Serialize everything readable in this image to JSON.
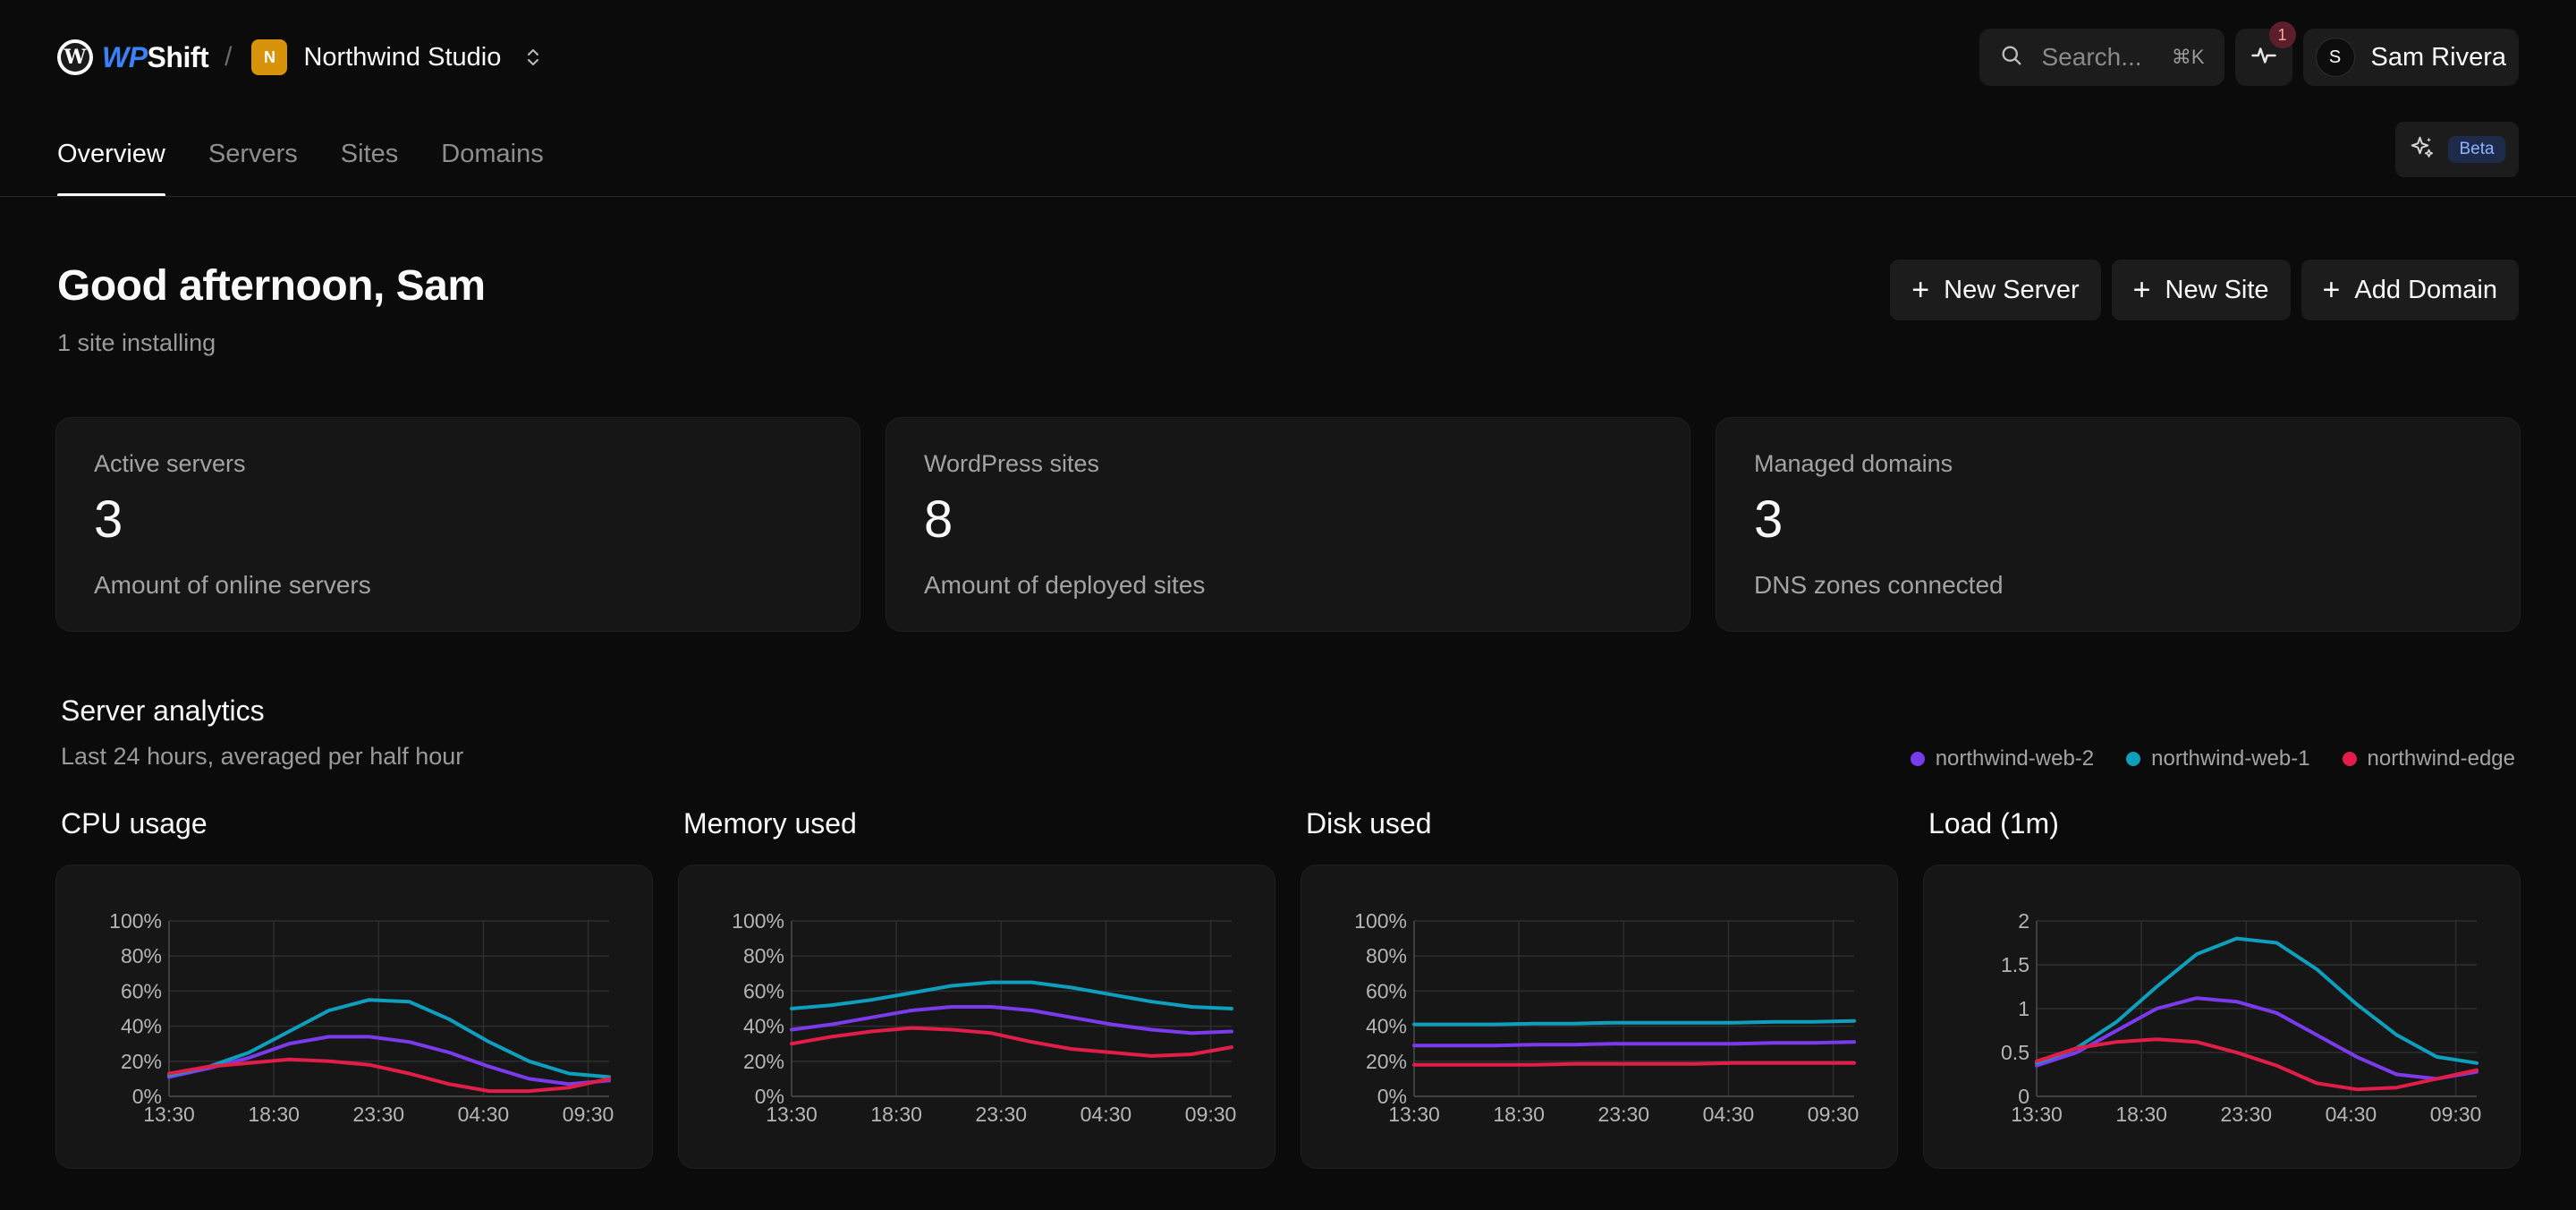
{
  "brand": {
    "logo_letter": "W",
    "name_prefix": "WP",
    "name_suffix": "Shift"
  },
  "org": {
    "initial": "N",
    "name": "Northwind Studio",
    "avatar_color": "#d7940a"
  },
  "search": {
    "placeholder": "Search...",
    "shortcut": "⌘K"
  },
  "notifications": {
    "count": "1"
  },
  "user": {
    "initial": "S",
    "name": "Sam Rivera"
  },
  "tabs": [
    {
      "label": "Overview",
      "active": true
    },
    {
      "label": "Servers",
      "active": false
    },
    {
      "label": "Sites",
      "active": false
    },
    {
      "label": "Domains",
      "active": false
    }
  ],
  "ai": {
    "badge": "Beta"
  },
  "header": {
    "greeting": "Good afternoon, Sam",
    "subtitle": "1 site installing"
  },
  "actions": {
    "new_server": "New Server",
    "new_site": "New Site",
    "add_domain": "Add Domain"
  },
  "stats": [
    {
      "label": "Active servers",
      "value": "3",
      "sub": "Amount of online servers"
    },
    {
      "label": "WordPress sites",
      "value": "8",
      "sub": "Amount of deployed sites"
    },
    {
      "label": "Managed domains",
      "value": "3",
      "sub": "DNS zones connected"
    }
  ],
  "analytics": {
    "title": "Server analytics",
    "subtitle": "Last 24 hours, averaged per half hour",
    "legend": [
      {
        "name": "northwind-web-2",
        "color": "#7c3aed"
      },
      {
        "name": "northwind-web-1",
        "color": "#0e9fbd"
      },
      {
        "name": "northwind-edge",
        "color": "#e11d48"
      }
    ]
  },
  "chart_data": [
    {
      "type": "line",
      "title": "CPU usage",
      "x_ticks": [
        "13:30",
        "18:30",
        "23:30",
        "04:30",
        "09:30"
      ],
      "y_ticks": [
        "0%",
        "20%",
        "40%",
        "60%",
        "80%",
        "100%"
      ],
      "ylim": [
        0,
        100
      ],
      "series": [
        {
          "name": "northwind-web-2",
          "color": "#7c3aed",
          "values": [
            11,
            16,
            22,
            30,
            34,
            34,
            31,
            25,
            17,
            10,
            7,
            9
          ]
        },
        {
          "name": "northwind-web-1",
          "color": "#0e9fbd",
          "values": [
            12,
            17,
            25,
            37,
            49,
            55,
            54,
            44,
            31,
            20,
            13,
            11
          ]
        },
        {
          "name": "northwind-edge",
          "color": "#e11d48",
          "values": [
            13,
            17,
            19,
            21,
            20,
            18,
            13,
            7,
            3,
            3,
            5,
            10
          ]
        }
      ]
    },
    {
      "type": "line",
      "title": "Memory used",
      "x_ticks": [
        "13:30",
        "18:30",
        "23:30",
        "04:30",
        "09:30"
      ],
      "y_ticks": [
        "0%",
        "20%",
        "40%",
        "60%",
        "80%",
        "100%"
      ],
      "ylim": [
        0,
        100
      ],
      "series": [
        {
          "name": "northwind-web-2",
          "color": "#7c3aed",
          "values": [
            38,
            41,
            45,
            49,
            51,
            51,
            49,
            45,
            41,
            38,
            36,
            37
          ]
        },
        {
          "name": "northwind-web-1",
          "color": "#0e9fbd",
          "values": [
            50,
            52,
            55,
            59,
            63,
            65,
            65,
            62,
            58,
            54,
            51,
            50
          ]
        },
        {
          "name": "northwind-edge",
          "color": "#e11d48",
          "values": [
            30,
            34,
            37,
            39,
            38,
            36,
            31,
            27,
            25,
            23,
            24,
            28
          ]
        }
      ]
    },
    {
      "type": "line",
      "title": "Disk used",
      "x_ticks": [
        "13:30",
        "18:30",
        "23:30",
        "04:30",
        "09:30"
      ],
      "y_ticks": [
        "0%",
        "20%",
        "40%",
        "60%",
        "80%",
        "100%"
      ],
      "ylim": [
        0,
        100
      ],
      "series": [
        {
          "name": "northwind-web-2",
          "color": "#7c3aed",
          "values": [
            29,
            29,
            29,
            29.5,
            29.5,
            30,
            30,
            30,
            30,
            30.5,
            30.5,
            31
          ]
        },
        {
          "name": "northwind-web-1",
          "color": "#0e9fbd",
          "values": [
            41,
            41,
            41,
            41.5,
            41.5,
            42,
            42,
            42,
            42,
            42.5,
            42.5,
            43
          ]
        },
        {
          "name": "northwind-edge",
          "color": "#e11d48",
          "values": [
            18,
            18,
            18,
            18,
            18.5,
            18.5,
            18.5,
            18.5,
            19,
            19,
            19,
            19
          ]
        }
      ]
    },
    {
      "type": "line",
      "title": "Load (1m)",
      "x_ticks": [
        "13:30",
        "18:30",
        "23:30",
        "04:30",
        "09:30"
      ],
      "y_ticks": [
        "0",
        "0.5",
        "1",
        "1.5",
        "2"
      ],
      "ylim": [
        0,
        2
      ],
      "series": [
        {
          "name": "northwind-web-2",
          "color": "#7c3aed",
          "values": [
            0.35,
            0.5,
            0.75,
            1.0,
            1.12,
            1.08,
            0.95,
            0.7,
            0.45,
            0.25,
            0.2,
            0.28
          ]
        },
        {
          "name": "northwind-web-1",
          "color": "#0e9fbd",
          "values": [
            0.38,
            0.55,
            0.85,
            1.25,
            1.62,
            1.8,
            1.75,
            1.45,
            1.05,
            0.7,
            0.45,
            0.38
          ]
        },
        {
          "name": "northwind-edge",
          "color": "#e11d48",
          "values": [
            0.4,
            0.55,
            0.62,
            0.65,
            0.62,
            0.5,
            0.35,
            0.15,
            0.08,
            0.1,
            0.2,
            0.3
          ]
        }
      ]
    }
  ]
}
